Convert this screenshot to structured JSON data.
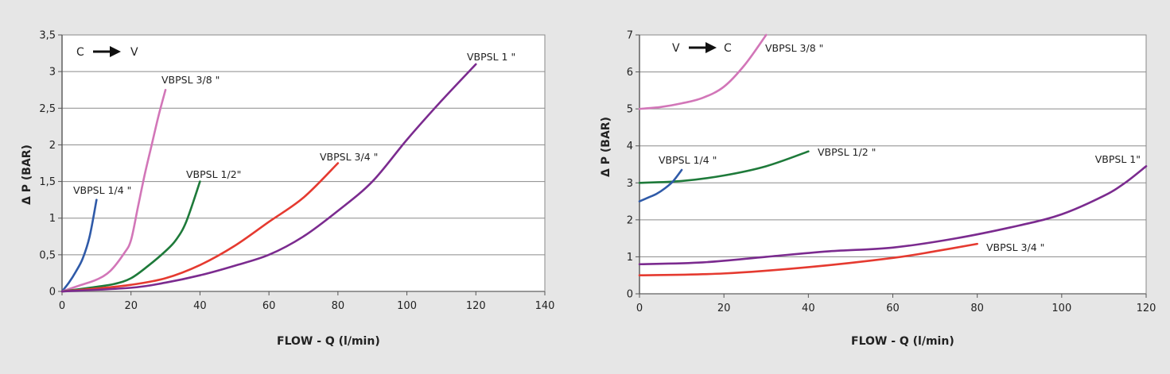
{
  "chart_data": [
    {
      "type": "line",
      "direction": {
        "from": "C",
        "to": "V"
      },
      "xlabel": "FLOW - Q (l/min)",
      "ylabel": "Δ P (BAR)",
      "xlim": [
        0,
        140
      ],
      "ylim": [
        0,
        3.5
      ],
      "xticks": [
        "0",
        "20",
        "40",
        "60",
        "80",
        "100",
        "120",
        "140"
      ],
      "yticks": [
        "0",
        "0,5",
        "1",
        "1,5",
        "2",
        "2,5",
        "3",
        "3,5"
      ],
      "grid": true,
      "series": [
        {
          "name": "VBPSL 1/4 \"",
          "color": "#2f5aa8",
          "points": [
            [
              0,
              0
            ],
            [
              2,
              0.12
            ],
            [
              4,
              0.27
            ],
            [
              6,
              0.45
            ],
            [
              8,
              0.75
            ],
            [
              10,
              1.25
            ]
          ]
        },
        {
          "name": "VBPSL 3/8 \"",
          "color": "#d276b8",
          "points": [
            [
              0,
              0
            ],
            [
              5,
              0.08
            ],
            [
              10,
              0.16
            ],
            [
              14,
              0.28
            ],
            [
              18,
              0.52
            ],
            [
              20,
              0.7
            ],
            [
              22,
              1.15
            ],
            [
              24,
              1.6
            ],
            [
              26,
              2.0
            ],
            [
              28,
              2.4
            ],
            [
              30,
              2.75
            ]
          ]
        },
        {
          "name": "VBPSL 1/2\"",
          "color": "#1e7a3a",
          "points": [
            [
              0,
              0
            ],
            [
              8,
              0.05
            ],
            [
              15,
              0.1
            ],
            [
              20,
              0.18
            ],
            [
              25,
              0.35
            ],
            [
              30,
              0.55
            ],
            [
              33,
              0.7
            ],
            [
              36,
              0.95
            ],
            [
              40,
              1.5
            ]
          ]
        },
        {
          "name": "VBPSL 3/4 \"",
          "color": "#e53a30",
          "points": [
            [
              0,
              0
            ],
            [
              10,
              0.04
            ],
            [
              20,
              0.09
            ],
            [
              30,
              0.18
            ],
            [
              40,
              0.36
            ],
            [
              50,
              0.62
            ],
            [
              60,
              0.95
            ],
            [
              70,
              1.28
            ],
            [
              80,
              1.75
            ]
          ]
        },
        {
          "name": "VBPSL 1 \"",
          "color": "#7b2b8f",
          "points": [
            [
              0,
              0
            ],
            [
              20,
              0.05
            ],
            [
              30,
              0.12
            ],
            [
              40,
              0.22
            ],
            [
              50,
              0.35
            ],
            [
              60,
              0.5
            ],
            [
              70,
              0.75
            ],
            [
              80,
              1.1
            ],
            [
              90,
              1.5
            ],
            [
              100,
              2.07
            ],
            [
              110,
              2.6
            ],
            [
              120,
              3.1
            ]
          ]
        }
      ]
    },
    {
      "type": "line",
      "direction": {
        "from": "V",
        "to": "C"
      },
      "xlabel": "FLOW - Q (l/min)",
      "ylabel": "Δ P (BAR)",
      "xlim": [
        0,
        120
      ],
      "ylim": [
        0,
        7
      ],
      "xticks": [
        "0",
        "20",
        "40",
        "60",
        "80",
        "100",
        "120"
      ],
      "yticks": [
        "0",
        "1",
        "2",
        "3",
        "4",
        "5",
        "6",
        "7"
      ],
      "grid": true,
      "series": [
        {
          "name": "VBPSL 3/8 \"",
          "color": "#d276b8",
          "points": [
            [
              0,
              5
            ],
            [
              5,
              5.05
            ],
            [
              10,
              5.15
            ],
            [
              15,
              5.3
            ],
            [
              20,
              5.6
            ],
            [
              25,
              6.2
            ],
            [
              30,
              7
            ]
          ]
        },
        {
          "name": "VBPSL 1/2 \"",
          "color": "#1e7a3a",
          "points": [
            [
              0,
              3
            ],
            [
              10,
              3.05
            ],
            [
              20,
              3.2
            ],
            [
              30,
              3.45
            ],
            [
              40,
              3.85
            ]
          ]
        },
        {
          "name": "VBPSL 1/4 \"",
          "color": "#2f5aa8",
          "points": [
            [
              0,
              2.5
            ],
            [
              2,
              2.6
            ],
            [
              4,
              2.7
            ],
            [
              6,
              2.85
            ],
            [
              8,
              3.05
            ],
            [
              10,
              3.35
            ]
          ]
        },
        {
          "name": "VBPSL 1\"",
          "color": "#7b2b8f",
          "points": [
            [
              0,
              0.8
            ],
            [
              15,
              0.85
            ],
            [
              30,
              1.0
            ],
            [
              45,
              1.15
            ],
            [
              60,
              1.25
            ],
            [
              75,
              1.5
            ],
            [
              90,
              1.85
            ],
            [
              100,
              2.15
            ],
            [
              110,
              2.65
            ],
            [
              115,
              3.0
            ],
            [
              120,
              3.45
            ]
          ]
        },
        {
          "name": "VBPSL 3/4 \"",
          "color": "#e53a30",
          "points": [
            [
              0,
              0.5
            ],
            [
              20,
              0.55
            ],
            [
              40,
              0.72
            ],
            [
              60,
              0.97
            ],
            [
              70,
              1.15
            ],
            [
              80,
              1.35
            ]
          ]
        }
      ]
    }
  ]
}
